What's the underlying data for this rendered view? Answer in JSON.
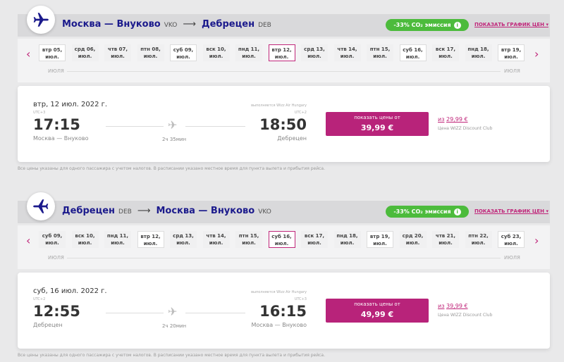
{
  "co2_label": "-33% CO₂ эмиссия",
  "price_chart_label": "ПОКАЗАТЬ ГРАФИК ЦЕН",
  "month_label": "ИЮЛЯ",
  "note": "Все цены указаны для одного пассажира с учетом налогов. В расписании указано местное время для пункта вылета и прибытия рейса.",
  "accent": "#b8237a",
  "brand": "#1b1a8c",
  "eco": "#4cbb3c",
  "flights": [
    {
      "from": "Москва — Внуково",
      "from_code": "VKO",
      "to": "Дебрецен",
      "to_code": "DEB",
      "days": [
        {
          "l": "втр 05,",
          "m": "июл.",
          "s": "white"
        },
        {
          "l": "срд 06,",
          "m": "июл."
        },
        {
          "l": "чтв 07,",
          "m": "июл."
        },
        {
          "l": "птн 08,",
          "m": "июл."
        },
        {
          "l": "суб 09,",
          "m": "июл.",
          "s": "white"
        },
        {
          "l": "вск 10,",
          "m": "июл."
        },
        {
          "l": "пнд 11,",
          "m": "июл."
        },
        {
          "l": "втр 12,",
          "m": "июл.",
          "s": "sel"
        },
        {
          "l": "срд 13,",
          "m": "июл."
        },
        {
          "l": "чтв 14,",
          "m": "июл."
        },
        {
          "l": "птн 15,",
          "m": "июл."
        },
        {
          "l": "суб 16,",
          "m": "июл.",
          "s": "white"
        },
        {
          "l": "вск 17,",
          "m": "июл."
        },
        {
          "l": "пнд 18,",
          "m": "июл."
        },
        {
          "l": "втр 19,",
          "m": "июл.",
          "s": "white"
        }
      ],
      "date": "втр, 12 июл. 2022 г.",
      "dep_utc": "UTC+3",
      "dep": "17:15",
      "arr_utc": "UTC+2",
      "arr": "18:50",
      "dep_city": "Москва — Внуково",
      "arr_city": "Дебрецен",
      "duration": "2ч 35мин",
      "operator": "выполняется Wizz Air Hungary",
      "btn_label": "показать цены от",
      "price": "39,99 €",
      "club_from": "из",
      "club_price": "29,99 €",
      "club_label": "Цена WIZZ Discount Club"
    },
    {
      "from": "Дебрецен",
      "from_code": "DEB",
      "to": "Москва — Внуково",
      "to_code": "VKO",
      "days": [
        {
          "l": "суб 09,",
          "m": "июл."
        },
        {
          "l": "вск 10,",
          "m": "июл."
        },
        {
          "l": "пнд 11,",
          "m": "июл."
        },
        {
          "l": "втр 12,",
          "m": "июл.",
          "s": "white"
        },
        {
          "l": "срд 13,",
          "m": "июл."
        },
        {
          "l": "чтв 14,",
          "m": "июл."
        },
        {
          "l": "птн 15,",
          "m": "июл."
        },
        {
          "l": "суб 16,",
          "m": "июл.",
          "s": "sel"
        },
        {
          "l": "вск 17,",
          "m": "июл."
        },
        {
          "l": "пнд 18,",
          "m": "июл."
        },
        {
          "l": "втр 19,",
          "m": "июл.",
          "s": "white"
        },
        {
          "l": "срд 20,",
          "m": "июл."
        },
        {
          "l": "чтв 21,",
          "m": "июл."
        },
        {
          "l": "птн 22,",
          "m": "июл."
        },
        {
          "l": "суб 23,",
          "m": "июл.",
          "s": "white"
        }
      ],
      "date": "суб, 16 июл. 2022 г.",
      "dep_utc": "UTC+2",
      "dep": "12:55",
      "arr_utc": "UTC+3",
      "arr": "16:15",
      "dep_city": "Дебрецен",
      "arr_city": "Москва — Внуково",
      "duration": "2ч 20мин",
      "operator": "выполняется Wizz Air Hungary",
      "btn_label": "показать цены от",
      "price": "49,99 €",
      "club_from": "из",
      "club_price": "39,99 €",
      "club_label": "Цена WIZZ Discount Club"
    }
  ]
}
